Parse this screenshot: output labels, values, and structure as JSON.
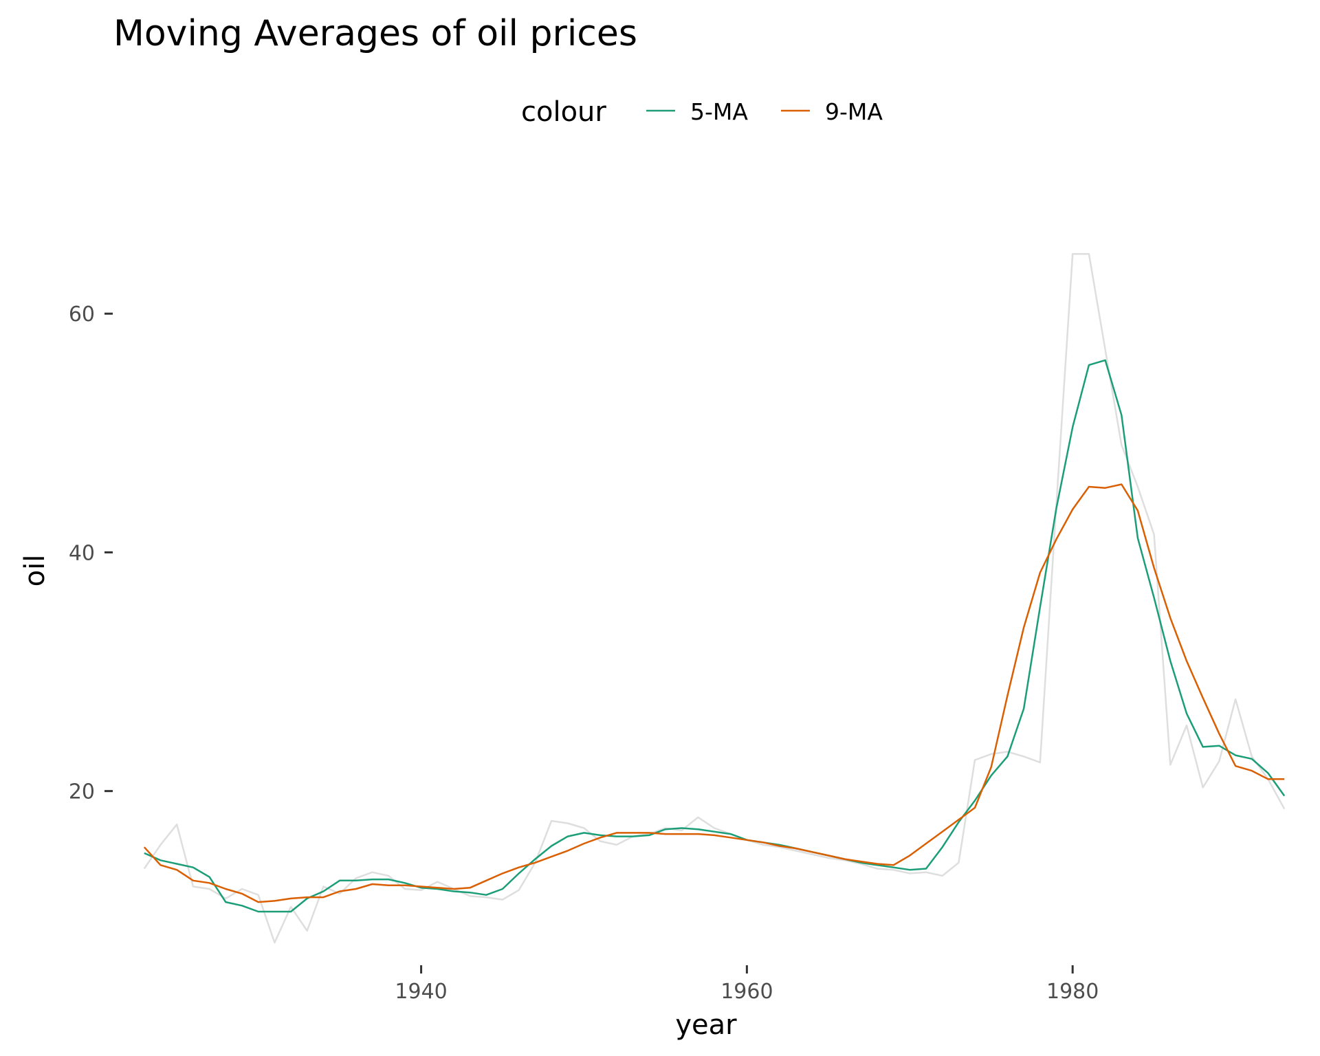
{
  "chart_data": {
    "type": "line",
    "title": "Moving Averages of oil prices",
    "xlabel": "year",
    "ylabel": "oil",
    "xlim": [
      1922.5,
      1993.5
    ],
    "ylim": [
      6.5,
      69
    ],
    "x_ticks": [
      1940,
      1960,
      1980
    ],
    "y_ticks": [
      20,
      40,
      60
    ],
    "grid": false,
    "legend": {
      "title": "colour",
      "placement": "top",
      "entries": [
        {
          "label": "5-MA",
          "color": "#1b9e77"
        },
        {
          "label": "9-MA",
          "color": "#d95f02"
        }
      ]
    },
    "colors": {
      "raw": "#dedede",
      "five_ma": "#1b9e77",
      "nine_ma": "#d95f02",
      "tick_label": "#4d4d4d"
    },
    "raw_series": {
      "x": [
        1923,
        1924,
        1925,
        1926,
        1927,
        1928,
        1929,
        1930,
        1931,
        1932,
        1933,
        1934,
        1935,
        1936,
        1937,
        1938,
        1939,
        1940,
        1941,
        1942,
        1943,
        1944,
        1945,
        1946,
        1947,
        1948,
        1949,
        1950,
        1951,
        1952,
        1953,
        1954,
        1955,
        1956,
        1957,
        1958,
        1959,
        1960,
        1961,
        1962,
        1963,
        1964,
        1965,
        1966,
        1967,
        1968,
        1969,
        1970,
        1971,
        1972,
        1973,
        1974,
        1975,
        1976,
        1977,
        1978,
        1979,
        1980,
        1981,
        1982,
        1983,
        1984,
        1985,
        1986,
        1987,
        1988,
        1989,
        1990,
        1991,
        1992,
        1993
      ],
      "y": [
        13.5,
        15.5,
        17.2,
        12.0,
        11.8,
        11.0,
        11.8,
        11.3,
        7.3,
        10.3,
        8.3,
        12.0,
        11.4,
        12.7,
        13.2,
        12.9,
        11.8,
        11.7,
        12.4,
        11.8,
        11.2,
        11.1,
        10.9,
        11.7,
        14.0,
        17.5,
        17.3,
        16.9,
        15.8,
        15.5,
        16.2,
        16.4,
        16.9,
        16.7,
        17.8,
        16.9,
        16.4,
        15.9,
        15.5,
        15.3,
        15.0,
        14.7,
        14.4,
        14.2,
        13.9,
        13.5,
        13.4,
        13.1,
        13.2,
        12.9,
        14.0,
        22.6,
        23.1,
        23.3,
        22.9,
        22.4,
        44.0,
        65.0,
        65.0,
        57.0,
        49.0,
        45.5,
        41.5,
        22.2,
        25.5,
        20.3,
        22.5,
        27.7,
        22.9,
        21.0,
        18.5
      ]
    },
    "series": [
      {
        "name": "5-MA",
        "x": [
          1923,
          1924,
          1925,
          1926,
          1927,
          1928,
          1929,
          1930,
          1931,
          1932,
          1933,
          1934,
          1935,
          1936,
          1937,
          1938,
          1939,
          1940,
          1941,
          1942,
          1943,
          1944,
          1945,
          1946,
          1947,
          1948,
          1949,
          1950,
          1951,
          1952,
          1953,
          1954,
          1955,
          1956,
          1957,
          1958,
          1959,
          1960,
          1961,
          1962,
          1963,
          1964,
          1965,
          1966,
          1967,
          1968,
          1969,
          1970,
          1971,
          1972,
          1973,
          1974,
          1975,
          1976,
          1977,
          1978,
          1979,
          1980,
          1981,
          1982,
          1983,
          1984,
          1985,
          1986,
          1987,
          1988,
          1989,
          1990,
          1991,
          1992,
          1993
        ],
        "y": [
          14.8,
          14.2,
          13.9,
          13.6,
          12.8,
          10.7,
          10.4,
          9.9,
          9.9,
          9.9,
          11.0,
          11.6,
          12.5,
          12.5,
          12.6,
          12.6,
          12.3,
          11.9,
          11.8,
          11.6,
          11.5,
          11.3,
          11.8,
          13.1,
          14.3,
          15.4,
          16.2,
          16.5,
          16.3,
          16.2,
          16.2,
          16.3,
          16.8,
          16.9,
          16.8,
          16.6,
          16.4,
          15.9,
          15.7,
          15.5,
          15.2,
          14.9,
          14.6,
          14.3,
          14.0,
          13.8,
          13.6,
          13.4,
          13.5,
          15.3,
          17.4,
          19.2,
          21.3,
          22.9,
          26.9,
          35.4,
          43.7,
          50.5,
          55.7,
          56.1,
          51.5,
          41.2,
          36.2,
          30.9,
          26.5,
          23.7,
          23.8,
          23.0,
          22.7,
          21.5,
          19.6
        ]
      },
      {
        "name": "9-MA",
        "x": [
          1923,
          1924,
          1925,
          1926,
          1927,
          1928,
          1929,
          1930,
          1931,
          1932,
          1933,
          1934,
          1935,
          1936,
          1937,
          1938,
          1939,
          1940,
          1941,
          1942,
          1943,
          1944,
          1945,
          1946,
          1947,
          1948,
          1949,
          1950,
          1951,
          1952,
          1953,
          1954,
          1955,
          1956,
          1957,
          1958,
          1959,
          1960,
          1961,
          1962,
          1963,
          1964,
          1965,
          1966,
          1967,
          1968,
          1969,
          1970,
          1971,
          1972,
          1973,
          1974,
          1975,
          1976,
          1977,
          1978,
          1979,
          1980,
          1981,
          1982,
          1983,
          1984,
          1985,
          1986,
          1987,
          1988,
          1989,
          1990,
          1991,
          1992,
          1993
        ],
        "y": [
          15.3,
          13.8,
          13.4,
          12.5,
          12.3,
          11.8,
          11.4,
          10.7,
          10.8,
          11.0,
          11.1,
          11.1,
          11.6,
          11.8,
          12.2,
          12.1,
          12.1,
          12.0,
          11.9,
          11.8,
          11.9,
          12.5,
          13.1,
          13.6,
          14.0,
          14.5,
          15.0,
          15.6,
          16.1,
          16.5,
          16.5,
          16.5,
          16.4,
          16.4,
          16.4,
          16.3,
          16.1,
          15.9,
          15.7,
          15.4,
          15.2,
          14.9,
          14.6,
          14.3,
          14.1,
          13.9,
          13.8,
          14.6,
          15.6,
          16.6,
          17.6,
          18.6,
          22.0,
          28.0,
          33.7,
          38.3,
          41.1,
          43.6,
          45.5,
          45.4,
          45.7,
          43.5,
          38.7,
          34.5,
          30.9,
          27.8,
          24.8,
          22.1,
          21.7,
          21.0,
          21.0
        ]
      }
    ]
  }
}
